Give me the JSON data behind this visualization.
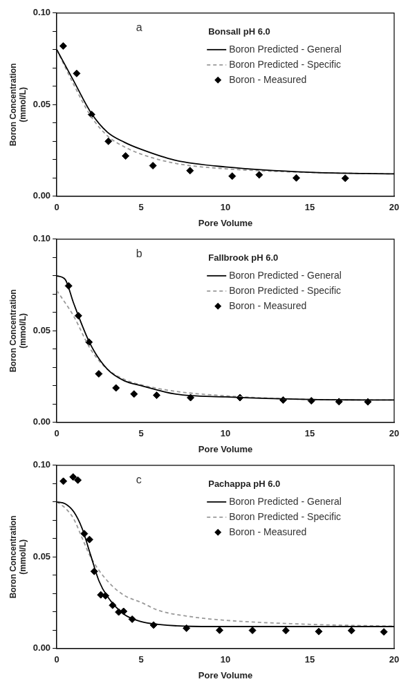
{
  "chart_data": [
    {
      "type": "line",
      "annotations": [
        "a"
      ],
      "legend_title": "Bonsall pH 6.0",
      "xlabel": "Pore Volume",
      "ylabel": "Boron Concentration\n(mmol/L)",
      "xlim": [
        0,
        20
      ],
      "xticks": [
        0,
        5,
        10,
        15,
        20
      ],
      "ylim": [
        0,
        0.1
      ],
      "yticks": [
        {
          "value": 0,
          "label": "0.00"
        },
        {
          "value": 0.01,
          "label": null
        },
        {
          "value": 0.02,
          "label": null
        },
        {
          "value": 0.03,
          "label": null
        },
        {
          "value": 0.04,
          "label": null
        },
        {
          "value": 0.05,
          "label": "0.05"
        },
        {
          "value": 0.06,
          "label": null
        },
        {
          "value": 0.07,
          "label": null
        },
        {
          "value": 0.08,
          "label": null
        },
        {
          "value": 0.09,
          "label": null
        },
        {
          "value": 0.1,
          "label": "0.10"
        }
      ],
      "legend": "top right",
      "series": [
        {
          "name": "Boron Predicted - General",
          "type": "line",
          "color": "#000000",
          "line_style": "solid",
          "marker": "none",
          "x": [
            0,
            1,
            2,
            3,
            4,
            5,
            7,
            10,
            15,
            20
          ],
          "values": [
            0.08,
            0.063,
            0.046,
            0.035,
            0.0295,
            0.0256,
            0.0197,
            0.016,
            0.0131,
            0.0122
          ]
        },
        {
          "name": "Boron Predicted - Specific",
          "type": "line",
          "color": "#999999",
          "line_style": "dashed",
          "marker": "none",
          "x": [
            0,
            1,
            2,
            3,
            4,
            5,
            7,
            10,
            15,
            20
          ],
          "values": [
            0.08,
            0.061,
            0.044,
            0.033,
            0.027,
            0.023,
            0.018,
            0.015,
            0.013,
            0.0122
          ]
        },
        {
          "name": "Boron - Measured",
          "type": "scatter",
          "color": "#000000",
          "marker": "diamond",
          "x": [
            0.38,
            1.18,
            2.06,
            3.06,
            4.08,
            5.7,
            7.9,
            10.4,
            12.0,
            14.2,
            17.1
          ],
          "values": [
            0.082,
            0.067,
            0.0446,
            0.03,
            0.022,
            0.0167,
            0.014,
            0.011,
            0.0117,
            0.01,
            0.0098
          ]
        }
      ]
    },
    {
      "type": "line",
      "annotations": [
        "b"
      ],
      "legend_title": "Fallbrook pH 6.0",
      "xlabel": "Pore Volume",
      "ylabel": "Boron Concentration\n(mmol/L)",
      "xlim": [
        0,
        20
      ],
      "xticks": [
        0,
        5,
        10,
        15,
        20
      ],
      "ylim": [
        0,
        0.1
      ],
      "yticks": [
        {
          "value": 0,
          "label": "0.00"
        },
        {
          "value": 0.01,
          "label": null
        },
        {
          "value": 0.02,
          "label": null
        },
        {
          "value": 0.03,
          "label": null
        },
        {
          "value": 0.04,
          "label": null
        },
        {
          "value": 0.05,
          "label": "0.05"
        },
        {
          "value": 0.06,
          "label": null
        },
        {
          "value": 0.07,
          "label": null
        },
        {
          "value": 0.08,
          "label": null
        },
        {
          "value": 0.09,
          "label": null
        },
        {
          "value": 0.1,
          "label": "0.10"
        }
      ],
      "legend": "top right",
      "series": [
        {
          "name": "Boron Predicted - General",
          "type": "line",
          "color": "#000000",
          "line_style": "solid",
          "marker": "none",
          "x": [
            0,
            0.5,
            1,
            2,
            3,
            4,
            5,
            7,
            10,
            15,
            20
          ],
          "values": [
            0.08,
            0.078,
            0.065,
            0.0425,
            0.029,
            0.0227,
            0.0201,
            0.0155,
            0.0139,
            0.0125,
            0.0122
          ]
        },
        {
          "name": "Boron Predicted - Specific",
          "type": "line",
          "color": "#999999",
          "line_style": "dashed",
          "marker": "none",
          "x": [
            0,
            1,
            2,
            3,
            4,
            5,
            7,
            10,
            15,
            20
          ],
          "values": [
            0.072,
            0.058,
            0.04,
            0.029,
            0.0235,
            0.0205,
            0.017,
            0.0145,
            0.0125,
            0.0122
          ]
        },
        {
          "name": "Boron - Measured",
          "type": "scatter",
          "color": "#000000",
          "marker": "diamond",
          "x": [
            0.7,
            1.28,
            1.91,
            2.49,
            3.51,
            4.58,
            5.92,
            7.93,
            10.86,
            13.42,
            15.09,
            16.73,
            18.44
          ],
          "values": [
            0.0745,
            0.0582,
            0.0438,
            0.0265,
            0.0188,
            0.0155,
            0.0148,
            0.0135,
            0.0135,
            0.0122,
            0.0118,
            0.0113,
            0.0112
          ]
        }
      ]
    },
    {
      "type": "line",
      "annotations": [
        "c"
      ],
      "legend_title": "Pachappa pH 6.0",
      "xlabel": "Pore Volume",
      "ylabel": "Boron Concentration\n(mmol/L)",
      "xlim": [
        0,
        20
      ],
      "xticks": [
        0,
        5,
        10,
        15,
        20
      ],
      "ylim": [
        0,
        0.1
      ],
      "yticks": [
        {
          "value": 0,
          "label": "0.00"
        },
        {
          "value": 0.01,
          "label": null
        },
        {
          "value": 0.02,
          "label": null
        },
        {
          "value": 0.03,
          "label": null
        },
        {
          "value": 0.04,
          "label": null
        },
        {
          "value": 0.05,
          "label": "0.05"
        },
        {
          "value": 0.06,
          "label": null
        },
        {
          "value": 0.07,
          "label": null
        },
        {
          "value": 0.08,
          "label": null
        },
        {
          "value": 0.09,
          "label": null
        },
        {
          "value": 0.1,
          "label": "0.10"
        }
      ],
      "legend": "top right",
      "series": [
        {
          "name": "Boron Predicted - General",
          "type": "line",
          "color": "#000000",
          "line_style": "solid",
          "marker": "none",
          "x": [
            0,
            0.5,
            1,
            1.5,
            2,
            2.5,
            3,
            4,
            5,
            6,
            8,
            10,
            20
          ],
          "values": [
            0.08,
            0.079,
            0.0747,
            0.0656,
            0.0512,
            0.0369,
            0.0284,
            0.0186,
            0.0147,
            0.0132,
            0.0121,
            0.012,
            0.012
          ]
        },
        {
          "name": "Boron Predicted - Specific",
          "type": "line",
          "color": "#999999",
          "line_style": "dashed",
          "marker": "none",
          "x": [
            0,
            0.5,
            1,
            1.5,
            2,
            3,
            4,
            5,
            6,
            8,
            10,
            15,
            20
          ],
          "values": [
            0.08,
            0.0767,
            0.0708,
            0.0604,
            0.05,
            0.0369,
            0.029,
            0.0252,
            0.0209,
            0.0173,
            0.0154,
            0.0132,
            0.0122
          ]
        },
        {
          "name": "Boron - Measured",
          "type": "scatter",
          "color": "#000000",
          "marker": "diamond",
          "x": [
            0.39,
            0.97,
            1.25,
            1.63,
            1.94,
            2.22,
            2.61,
            2.89,
            3.31,
            3.67,
            3.96,
            4.47,
            5.74,
            7.69,
            9.65,
            11.6,
            13.58,
            15.53,
            17.47,
            19.39
          ],
          "values": [
            0.0913,
            0.0936,
            0.0919,
            0.0627,
            0.0595,
            0.0421,
            0.0293,
            0.0288,
            0.0236,
            0.0199,
            0.0203,
            0.016,
            0.0128,
            0.0111,
            0.01,
            0.0099,
            0.0098,
            0.0093,
            0.0098,
            0.0091
          ]
        }
      ]
    }
  ]
}
